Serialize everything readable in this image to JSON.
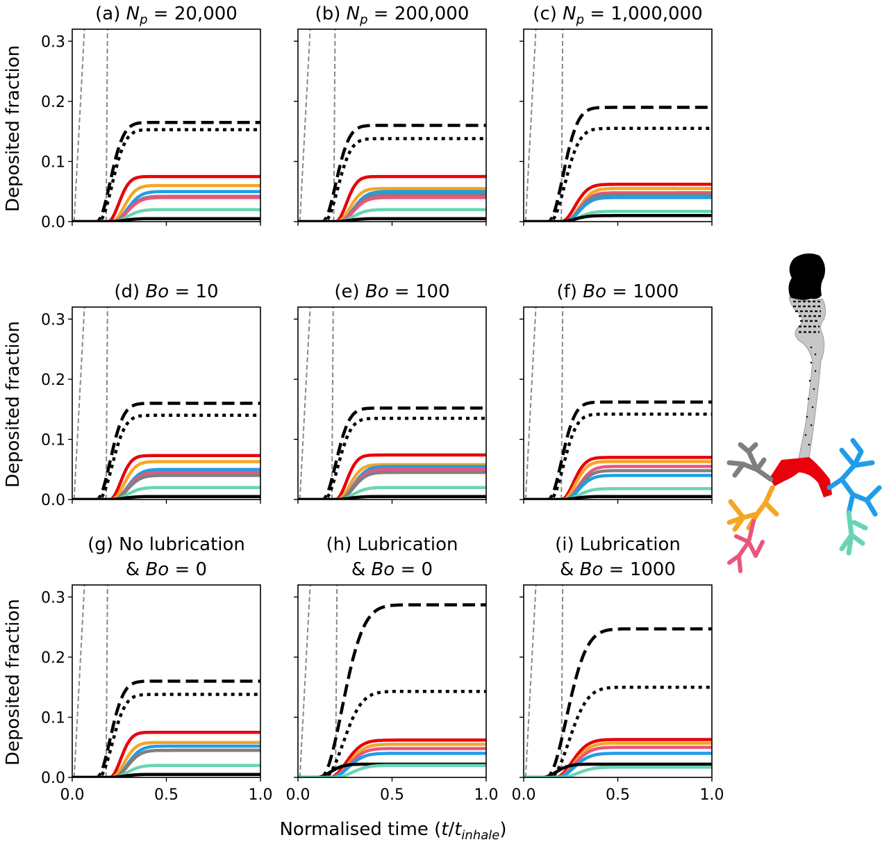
{
  "figure": {
    "ylabel": "Deposited fraction",
    "xlabel_main": "Normalised time (",
    "xlabel_t": "t",
    "xlabel_slash": "/",
    "xlabel_sub_t": "t",
    "xlabel_sub": "inhale",
    "xlabel_close": ")"
  },
  "colors": {
    "red": "#e8000b",
    "orange": "#f5a623",
    "pink": "#e8567e",
    "blue": "#1f9de8",
    "gray": "#7f7f7f",
    "teal": "#69d4b4",
    "black": "#000000",
    "guide": "#888888"
  },
  "chart_data": [
    {
      "type": "line",
      "title_prefix": "(a) ",
      "title_sym": "N",
      "title_sub": "p",
      "title_rest": " =  20,000",
      "xlim": [
        0,
        1
      ],
      "ylim": [
        0,
        0.32
      ],
      "xticks": [
        "0.0",
        "0.5",
        "1.0"
      ],
      "yticks": [
        "0.0",
        "0.1",
        "0.2",
        "0.3"
      ],
      "guides": [
        0.01,
        0.18
      ],
      "series": [
        {
          "color": "black",
          "style": "dashed",
          "final": 0.165,
          "onset": 0.13,
          "rise": 0.1
        },
        {
          "color": "black",
          "style": "dotted",
          "final": 0.153,
          "onset": 0.14,
          "rise": 0.1
        },
        {
          "color": "red",
          "style": "solid",
          "final": 0.075,
          "onset": 0.19,
          "rise": 0.08
        },
        {
          "color": "orange",
          "style": "solid",
          "final": 0.06,
          "onset": 0.21,
          "rise": 0.09
        },
        {
          "color": "blue",
          "style": "solid",
          "final": 0.05,
          "onset": 0.22,
          "rise": 0.1
        },
        {
          "color": "gray",
          "style": "solid",
          "final": 0.042,
          "onset": 0.22,
          "rise": 0.1
        },
        {
          "color": "pink",
          "style": "solid",
          "final": 0.04,
          "onset": 0.22,
          "rise": 0.1
        },
        {
          "color": "teal",
          "style": "solid",
          "final": 0.02,
          "onset": 0.22,
          "rise": 0.1
        },
        {
          "color": "black",
          "style": "solid",
          "final": 0.005,
          "onset": 0.2,
          "rise": 0.1
        }
      ]
    },
    {
      "type": "line",
      "title_prefix": "(b) ",
      "title_sym": "N",
      "title_sub": "p",
      "title_rest": " =  200,000",
      "xlim": [
        0,
        1
      ],
      "ylim": [
        0,
        0.32
      ],
      "xticks": [
        "0.0",
        "0.5",
        "1.0"
      ],
      "yticks": [
        "0.0",
        "0.1",
        "0.2",
        "0.3"
      ],
      "guides": [
        0.01,
        0.19
      ],
      "series": [
        {
          "color": "black",
          "style": "dashed",
          "final": 0.16,
          "onset": 0.13,
          "rise": 0.1
        },
        {
          "color": "black",
          "style": "dotted",
          "final": 0.138,
          "onset": 0.14,
          "rise": 0.1
        },
        {
          "color": "red",
          "style": "solid",
          "final": 0.075,
          "onset": 0.2,
          "rise": 0.08
        },
        {
          "color": "orange",
          "style": "solid",
          "final": 0.055,
          "onset": 0.21,
          "rise": 0.09
        },
        {
          "color": "blue",
          "style": "solid",
          "final": 0.05,
          "onset": 0.22,
          "rise": 0.1
        },
        {
          "color": "gray",
          "style": "solid",
          "final": 0.045,
          "onset": 0.22,
          "rise": 0.1
        },
        {
          "color": "pink",
          "style": "solid",
          "final": 0.04,
          "onset": 0.22,
          "rise": 0.1
        },
        {
          "color": "teal",
          "style": "solid",
          "final": 0.02,
          "onset": 0.22,
          "rise": 0.1
        },
        {
          "color": "black",
          "style": "solid",
          "final": 0.005,
          "onset": 0.2,
          "rise": 0.1
        }
      ]
    },
    {
      "type": "line",
      "title_prefix": "(c) ",
      "title_sym": "N",
      "title_sub": "p",
      "title_rest": " =  1,000,000",
      "xlim": [
        0,
        1
      ],
      "ylim": [
        0,
        0.32
      ],
      "xticks": [
        "0.0",
        "0.5",
        "1.0"
      ],
      "yticks": [
        "0.0",
        "0.1",
        "0.2",
        "0.3"
      ],
      "guides": [
        0.01,
        0.2
      ],
      "series": [
        {
          "color": "black",
          "style": "dashed",
          "final": 0.19,
          "onset": 0.13,
          "rise": 0.11
        },
        {
          "color": "black",
          "style": "dotted",
          "final": 0.155,
          "onset": 0.14,
          "rise": 0.11
        },
        {
          "color": "red",
          "style": "solid",
          "final": 0.062,
          "onset": 0.2,
          "rise": 0.1
        },
        {
          "color": "orange",
          "style": "solid",
          "final": 0.055,
          "onset": 0.22,
          "rise": 0.1
        },
        {
          "color": "pink",
          "style": "solid",
          "final": 0.048,
          "onset": 0.22,
          "rise": 0.1
        },
        {
          "color": "gray",
          "style": "solid",
          "final": 0.045,
          "onset": 0.22,
          "rise": 0.1
        },
        {
          "color": "blue",
          "style": "solid",
          "final": 0.04,
          "onset": 0.22,
          "rise": 0.1
        },
        {
          "color": "teal",
          "style": "solid",
          "final": 0.017,
          "onset": 0.22,
          "rise": 0.1
        },
        {
          "color": "black",
          "style": "solid",
          "final": 0.01,
          "onset": 0.2,
          "rise": 0.1
        }
      ]
    },
    {
      "type": "line",
      "title_prefix": "(d) ",
      "title_sym": "Bo",
      "title_sub": "",
      "title_rest": " = 10",
      "xlim": [
        0,
        1
      ],
      "ylim": [
        0,
        0.32
      ],
      "xticks": [
        "0.0",
        "0.5",
        "1.0"
      ],
      "yticks": [
        "0.0",
        "0.1",
        "0.2",
        "0.3"
      ],
      "guides": [
        0.01,
        0.18
      ],
      "series": [
        {
          "color": "black",
          "style": "dashed",
          "final": 0.16,
          "onset": 0.13,
          "rise": 0.1
        },
        {
          "color": "black",
          "style": "dotted",
          "final": 0.14,
          "onset": 0.14,
          "rise": 0.1
        },
        {
          "color": "red",
          "style": "solid",
          "final": 0.073,
          "onset": 0.2,
          "rise": 0.08
        },
        {
          "color": "orange",
          "style": "solid",
          "final": 0.063,
          "onset": 0.21,
          "rise": 0.09
        },
        {
          "color": "blue",
          "style": "solid",
          "final": 0.05,
          "onset": 0.22,
          "rise": 0.1
        },
        {
          "color": "pink",
          "style": "solid",
          "final": 0.045,
          "onset": 0.22,
          "rise": 0.1
        },
        {
          "color": "gray",
          "style": "solid",
          "final": 0.04,
          "onset": 0.22,
          "rise": 0.1
        },
        {
          "color": "teal",
          "style": "solid",
          "final": 0.02,
          "onset": 0.22,
          "rise": 0.1
        },
        {
          "color": "black",
          "style": "solid",
          "final": 0.005,
          "onset": 0.2,
          "rise": 0.1
        }
      ]
    },
    {
      "type": "line",
      "title_prefix": "(e) ",
      "title_sym": "Bo",
      "title_sub": "",
      "title_rest": " = 100",
      "xlim": [
        0,
        1
      ],
      "ylim": [
        0,
        0.32
      ],
      "xticks": [
        "0.0",
        "0.5",
        "1.0"
      ],
      "yticks": [
        "0.0",
        "0.1",
        "0.2",
        "0.3"
      ],
      "guides": [
        0.01,
        0.18
      ],
      "series": [
        {
          "color": "black",
          "style": "dashed",
          "final": 0.152,
          "onset": 0.13,
          "rise": 0.1
        },
        {
          "color": "black",
          "style": "dotted",
          "final": 0.135,
          "onset": 0.14,
          "rise": 0.1
        },
        {
          "color": "red",
          "style": "solid",
          "final": 0.074,
          "onset": 0.2,
          "rise": 0.08
        },
        {
          "color": "orange",
          "style": "solid",
          "final": 0.058,
          "onset": 0.21,
          "rise": 0.09
        },
        {
          "color": "blue",
          "style": "solid",
          "final": 0.055,
          "onset": 0.22,
          "rise": 0.1
        },
        {
          "color": "pink",
          "style": "solid",
          "final": 0.05,
          "onset": 0.22,
          "rise": 0.1
        },
        {
          "color": "gray",
          "style": "solid",
          "final": 0.045,
          "onset": 0.22,
          "rise": 0.1
        },
        {
          "color": "teal",
          "style": "solid",
          "final": 0.02,
          "onset": 0.22,
          "rise": 0.1
        },
        {
          "color": "black",
          "style": "solid",
          "final": 0.005,
          "onset": 0.2,
          "rise": 0.1
        }
      ]
    },
    {
      "type": "line",
      "title_prefix": "(f) ",
      "title_sym": "Bo",
      "title_sub": "",
      "title_rest": " = 1000",
      "xlim": [
        0,
        1
      ],
      "ylim": [
        0,
        0.32
      ],
      "xticks": [
        "0.0",
        "0.5",
        "1.0"
      ],
      "yticks": [
        "0.0",
        "0.1",
        "0.2",
        "0.3"
      ],
      "guides": [
        0.01,
        0.2
      ],
      "series": [
        {
          "color": "black",
          "style": "dashed",
          "final": 0.162,
          "onset": 0.13,
          "rise": 0.1
        },
        {
          "color": "black",
          "style": "dotted",
          "final": 0.142,
          "onset": 0.14,
          "rise": 0.1
        },
        {
          "color": "red",
          "style": "solid",
          "final": 0.07,
          "onset": 0.2,
          "rise": 0.09
        },
        {
          "color": "orange",
          "style": "solid",
          "final": 0.063,
          "onset": 0.21,
          "rise": 0.09
        },
        {
          "color": "pink",
          "style": "solid",
          "final": 0.055,
          "onset": 0.22,
          "rise": 0.1
        },
        {
          "color": "gray",
          "style": "solid",
          "final": 0.048,
          "onset": 0.22,
          "rise": 0.1
        },
        {
          "color": "blue",
          "style": "solid",
          "final": 0.04,
          "onset": 0.22,
          "rise": 0.1
        },
        {
          "color": "teal",
          "style": "solid",
          "final": 0.018,
          "onset": 0.22,
          "rise": 0.1
        },
        {
          "color": "black",
          "style": "solid",
          "final": 0.005,
          "onset": 0.2,
          "rise": 0.1
        }
      ]
    },
    {
      "type": "line",
      "title_line1": "(g) No lubrication",
      "title_prefix": "& ",
      "title_sym": "Bo",
      "title_sub": "",
      "title_rest": " = 0",
      "xlim": [
        0,
        1
      ],
      "ylim": [
        0,
        0.32
      ],
      "xticks": [
        "0.0",
        "0.5",
        "1.0"
      ],
      "yticks": [
        "0.0",
        "0.1",
        "0.2",
        "0.3"
      ],
      "guides": [
        0.01,
        0.18
      ],
      "series": [
        {
          "color": "black",
          "style": "dashed",
          "final": 0.16,
          "onset": 0.13,
          "rise": 0.1
        },
        {
          "color": "black",
          "style": "dotted",
          "final": 0.138,
          "onset": 0.14,
          "rise": 0.1
        },
        {
          "color": "red",
          "style": "solid",
          "final": 0.075,
          "onset": 0.2,
          "rise": 0.08
        },
        {
          "color": "orange",
          "style": "solid",
          "final": 0.058,
          "onset": 0.21,
          "rise": 0.09
        },
        {
          "color": "blue",
          "style": "solid",
          "final": 0.052,
          "onset": 0.22,
          "rise": 0.1
        },
        {
          "color": "pink",
          "style": "solid",
          "final": 0.045,
          "onset": 0.22,
          "rise": 0.1
        },
        {
          "color": "gray",
          "style": "solid",
          "final": 0.045,
          "onset": 0.22,
          "rise": 0.1
        },
        {
          "color": "teal",
          "style": "solid",
          "final": 0.02,
          "onset": 0.22,
          "rise": 0.1
        },
        {
          "color": "black",
          "style": "solid",
          "final": 0.005,
          "onset": 0.2,
          "rise": 0.1
        }
      ]
    },
    {
      "type": "line",
      "title_line1": "(h) Lubrication",
      "title_prefix": "& ",
      "title_sym": "Bo",
      "title_sub": "",
      "title_rest": " = 0",
      "xlim": [
        0,
        1
      ],
      "ylim": [
        0,
        0.32
      ],
      "xticks": [
        "0.0",
        "0.5",
        "1.0"
      ],
      "yticks": [
        "0.0",
        "0.1",
        "0.2",
        "0.3"
      ],
      "guides": [
        0.01,
        0.2
      ],
      "series": [
        {
          "color": "black",
          "style": "dashed",
          "final": 0.287,
          "onset": 0.12,
          "rise": 0.16
        },
        {
          "color": "black",
          "style": "dotted",
          "final": 0.143,
          "onset": 0.14,
          "rise": 0.14
        },
        {
          "color": "red",
          "style": "solid",
          "final": 0.062,
          "onset": 0.17,
          "rise": 0.12
        },
        {
          "color": "orange",
          "style": "solid",
          "final": 0.055,
          "onset": 0.18,
          "rise": 0.12
        },
        {
          "color": "pink",
          "style": "solid",
          "final": 0.048,
          "onset": 0.18,
          "rise": 0.12
        },
        {
          "color": "blue",
          "style": "solid",
          "final": 0.04,
          "onset": 0.18,
          "rise": 0.12
        },
        {
          "color": "black",
          "style": "solid",
          "final": 0.022,
          "onset": 0.1,
          "rise": 0.1
        },
        {
          "color": "teal",
          "style": "solid",
          "final": 0.02,
          "onset": 0.2,
          "rise": 0.12
        }
      ]
    },
    {
      "type": "line",
      "title_line1": "(i) Lubrication",
      "title_prefix": "& ",
      "title_sym": "Bo",
      "title_sub": "",
      "title_rest": " = 1000",
      "xlim": [
        0,
        1
      ],
      "ylim": [
        0,
        0.32
      ],
      "xticks": [
        "0.0",
        "0.5",
        "1.0"
      ],
      "yticks": [
        "0.0",
        "0.1",
        "0.2",
        "0.3"
      ],
      "guides": [
        0.01,
        0.2
      ],
      "series": [
        {
          "color": "black",
          "style": "dashed",
          "final": 0.247,
          "onset": 0.12,
          "rise": 0.15
        },
        {
          "color": "black",
          "style": "dotted",
          "final": 0.15,
          "onset": 0.14,
          "rise": 0.14
        },
        {
          "color": "red",
          "style": "solid",
          "final": 0.063,
          "onset": 0.17,
          "rise": 0.12
        },
        {
          "color": "orange",
          "style": "solid",
          "final": 0.057,
          "onset": 0.18,
          "rise": 0.12
        },
        {
          "color": "pink",
          "style": "solid",
          "final": 0.05,
          "onset": 0.18,
          "rise": 0.12
        },
        {
          "color": "blue",
          "style": "solid",
          "final": 0.04,
          "onset": 0.18,
          "rise": 0.12
        },
        {
          "color": "black",
          "style": "solid",
          "final": 0.022,
          "onset": 0.1,
          "rise": 0.1
        },
        {
          "color": "teal",
          "style": "solid",
          "final": 0.017,
          "onset": 0.2,
          "rise": 0.12
        }
      ]
    }
  ]
}
